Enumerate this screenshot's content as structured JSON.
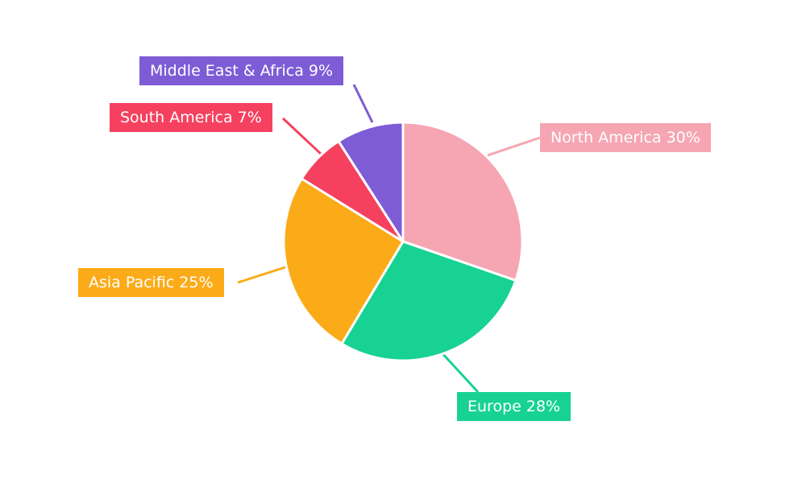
{
  "chart_data": {
    "type": "pie",
    "title": "",
    "legend_position": "none",
    "label_style": "callout-boxes",
    "background_color": "#ffffff",
    "label_text_color": "#ffffff",
    "slices": [
      {
        "label": "North America",
        "value": 30,
        "display": "North America 30%",
        "color": "#f5a6b2"
      },
      {
        "label": "Europe",
        "value": 28,
        "display": "Europe 28%",
        "color": "#17d292"
      },
      {
        "label": "Asia Pacific",
        "value": 25,
        "display": "Asia Pacific 25%",
        "color": "#fbab18"
      },
      {
        "label": "South America",
        "value": 7,
        "display": "South America 7%",
        "color": "#f5415f"
      },
      {
        "label": "Middle East & Africa",
        "value": 9,
        "display": "Middle East & Africa 9%",
        "color": "#7d5cd6"
      }
    ]
  }
}
